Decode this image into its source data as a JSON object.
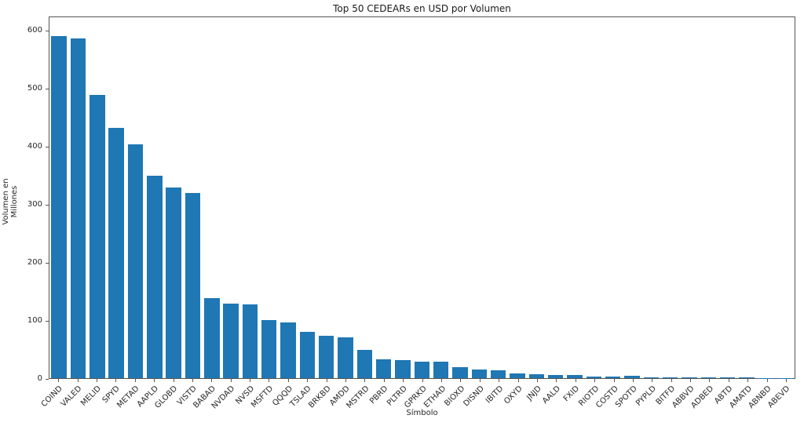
{
  "figure": {
    "title": "Top 50 CEDEARs en USD por Volumen",
    "xlabel": "Símbolo",
    "ylabel": "Volumen en Millones"
  },
  "chart_data": {
    "type": "bar",
    "title": "Top 50 CEDEARs en USD por Volumen",
    "xlabel": "Símbolo",
    "ylabel": "Volumen en Millones",
    "categories": [
      "COIND",
      "VALED",
      "MELID",
      "SPYD",
      "METAD",
      "AAPLD",
      "GLOBD",
      "VISTD",
      "BABAD",
      "NVDAD",
      "NVSD",
      "MSFTD",
      "QQQD",
      "TSLAD",
      "BRKBD",
      "AMDD",
      "MSTRD",
      "PBRD",
      "PLTRD",
      "GPRKD",
      "ETHAD",
      "BIOXD",
      "DISND",
      "IBITD",
      "OXYD",
      "JNJD",
      "AALD",
      "FXID",
      "RIOTD",
      "COSTD",
      "SPOTD",
      "PYPLD",
      "BITFD",
      "ABBVD",
      "ADBED",
      "ABTD",
      "AMATD",
      "ABNBD",
      "ABEVD"
    ],
    "values": [
      593,
      589,
      491,
      433,
      405,
      350,
      330,
      320,
      138,
      129,
      128,
      100,
      97,
      80,
      74,
      70,
      49,
      33,
      31,
      29,
      28,
      19,
      15,
      13,
      8,
      7,
      6,
      6,
      3,
      3,
      3.5,
      2,
      2,
      2,
      1.5,
      1.5,
      1,
      0.5,
      0.2
    ],
    "yticks": [
      0,
      100,
      200,
      300,
      400,
      500,
      600
    ],
    "ylim": [
      0,
      625
    ],
    "x_tick_rotation": 45,
    "grid": false,
    "legend": "none",
    "bar_color": "#1f77b4",
    "spine_color": "#555555",
    "text_color": "#262626"
  }
}
